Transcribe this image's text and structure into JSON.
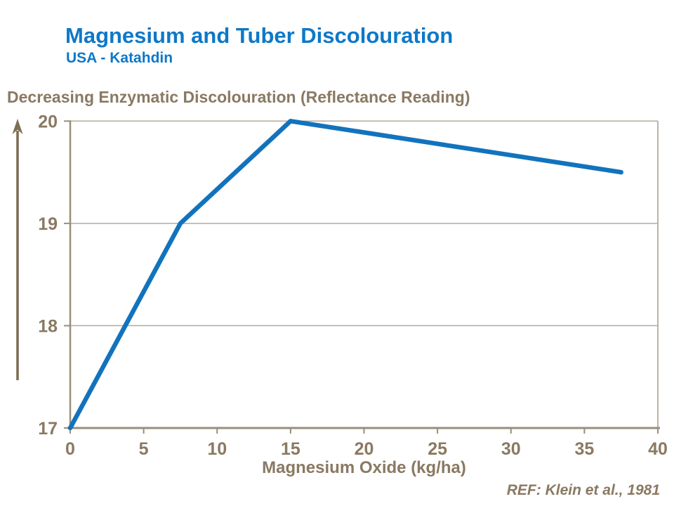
{
  "slide": {
    "title": "Magnesium and Tuber Discolouration",
    "subtitle": "USA - Katahdin",
    "axis_heading": "Decreasing Enzymatic Discolouration (Reflectance Reading)",
    "x_axis_title": "Magnesium Oxide (kg/ha)",
    "reference": "REF: Klein et al., 1981"
  },
  "colors": {
    "title_blue": "#0E78C8",
    "line_blue": "#1273BD",
    "label_brown": "#8A7962",
    "axis_brown": "#9A8D79",
    "grid_brown": "#B5AB9A",
    "arrow_brown": "#7D6E55"
  },
  "chart_data": {
    "type": "line",
    "title": "Magnesium and Tuber Discolouration",
    "subtitle": "USA - Katahdin",
    "xlabel": "Magnesium Oxide (kg/ha)",
    "ylabel": "Decreasing Enzymatic Discolouration (Reflectance Reading)",
    "series": [
      {
        "name": "Reflectance Reading",
        "x": [
          0,
          7.5,
          15,
          37.5
        ],
        "y": [
          17,
          19,
          20,
          19.5
        ]
      }
    ],
    "xlim": [
      0,
      40
    ],
    "ylim": [
      17,
      20
    ],
    "xticks": [
      0,
      5,
      10,
      15,
      20,
      25,
      30,
      35,
      40
    ],
    "yticks": [
      17,
      18,
      19,
      20
    ],
    "grid": "horizontal",
    "legend": "none",
    "annotation": "REF: Klein et al., 1981"
  }
}
